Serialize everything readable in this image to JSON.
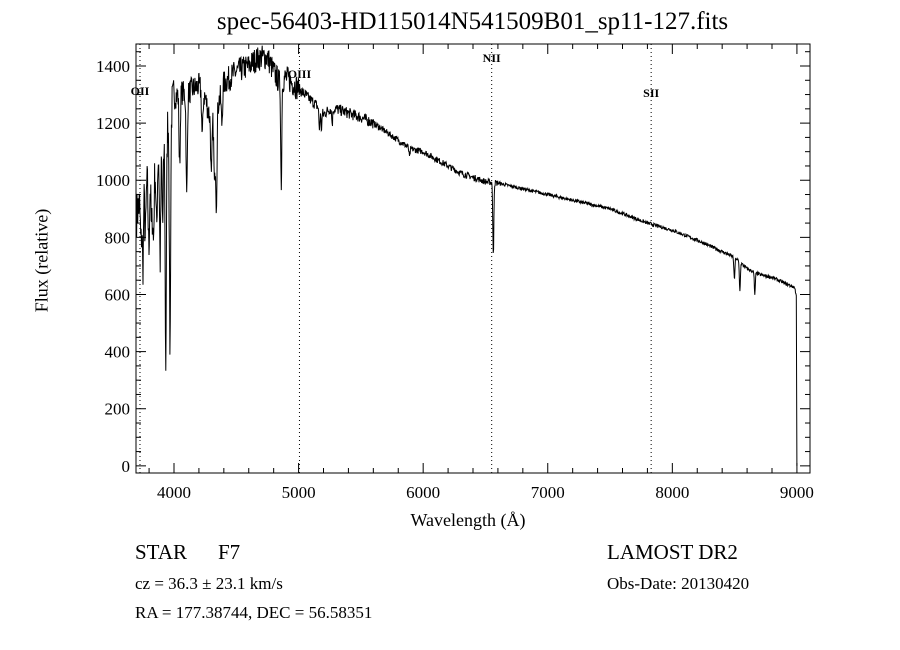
{
  "chart_data": {
    "type": "line",
    "title": "spec-56403-HD115014N541509B01_sp11-127.fits",
    "xlabel": "Wavelength (Å)",
    "ylabel": "Flux (relative)",
    "xlim": [
      3695,
      9105
    ],
    "ylim": [
      -25,
      1477
    ],
    "xticks": [
      4000,
      5000,
      6000,
      7000,
      8000,
      9000
    ],
    "yticks": [
      0,
      200,
      400,
      600,
      800,
      1000,
      1200,
      1400
    ],
    "grid": false,
    "series": [
      {
        "name": "spectrum",
        "continuum": [
          [
            3700,
            880
          ],
          [
            3760,
            980
          ],
          [
            3800,
            1000
          ],
          [
            3850,
            1050
          ],
          [
            3900,
            1120
          ],
          [
            3950,
            1200
          ],
          [
            4000,
            1290
          ],
          [
            4050,
            1310
          ],
          [
            4100,
            1300
          ],
          [
            4150,
            1320
          ],
          [
            4200,
            1330
          ],
          [
            4250,
            1290
          ],
          [
            4300,
            1200
          ],
          [
            4350,
            1260
          ],
          [
            4400,
            1340
          ],
          [
            4450,
            1360
          ],
          [
            4500,
            1380
          ],
          [
            4550,
            1390
          ],
          [
            4600,
            1400
          ],
          [
            4650,
            1420
          ],
          [
            4700,
            1430
          ],
          [
            4750,
            1430
          ],
          [
            4800,
            1380
          ],
          [
            4850,
            1340
          ],
          [
            4900,
            1360
          ],
          [
            4950,
            1340
          ],
          [
            5000,
            1320
          ],
          [
            5100,
            1280
          ],
          [
            5150,
            1260
          ],
          [
            5200,
            1230
          ],
          [
            5250,
            1250
          ],
          [
            5300,
            1250
          ],
          [
            5400,
            1235
          ],
          [
            5500,
            1220
          ],
          [
            5600,
            1200
          ],
          [
            5700,
            1170
          ],
          [
            5800,
            1140
          ],
          [
            5900,
            1110
          ],
          [
            6000,
            1100
          ],
          [
            6100,
            1075
          ],
          [
            6200,
            1050
          ],
          [
            6300,
            1025
          ],
          [
            6400,
            1010
          ],
          [
            6500,
            995
          ],
          [
            6600,
            990
          ],
          [
            6800,
            970
          ],
          [
            7000,
            950
          ],
          [
            7200,
            930
          ],
          [
            7500,
            900
          ],
          [
            7800,
            850
          ],
          [
            8000,
            825
          ],
          [
            8200,
            790
          ],
          [
            8400,
            750
          ],
          [
            8500,
            730
          ],
          [
            8600,
            690
          ],
          [
            8700,
            670
          ],
          [
            8800,
            660
          ],
          [
            8900,
            640
          ],
          [
            8980,
            625
          ],
          [
            8995,
            600
          ]
        ],
        "absorption_lines": [
          [
            3735,
            780
          ],
          [
            3750,
            700
          ],
          [
            3770,
            800
          ],
          [
            3798,
            760
          ],
          [
            3820,
            820
          ],
          [
            3835,
            790
          ],
          [
            3860,
            830
          ],
          [
            3889,
            720
          ],
          [
            3910,
            850
          ],
          [
            3934,
            360
          ],
          [
            3968,
            420
          ],
          [
            4045,
            1050
          ],
          [
            4102,
            940
          ],
          [
            4227,
            1150
          ],
          [
            4300,
            1000
          ],
          [
            4325,
            980
          ],
          [
            4340,
            920
          ],
          [
            4384,
            1200
          ],
          [
            4861,
            960
          ],
          [
            5167,
            1180
          ],
          [
            5183,
            1180
          ],
          [
            5270,
            1200
          ],
          [
            5890,
            1080
          ],
          [
            6563,
            730
          ],
          [
            8498,
            650
          ],
          [
            8542,
            610
          ],
          [
            8662,
            600
          ]
        ],
        "end_drop": [
          9000,
          0
        ]
      }
    ],
    "annotations": {
      "emission_markers": [
        {
          "label": "OII",
          "wavelength": 3727
        },
        {
          "label": "OIII",
          "wavelength": 5007
        },
        {
          "label": "NII",
          "wavelength": 6550
        },
        {
          "label": "SII",
          "wavelength": 7830
        }
      ]
    }
  },
  "info": {
    "class": "STAR",
    "subclass": "F7",
    "survey": "LAMOST DR2",
    "cz": "cz = 36.3 ± 23.1 km/s",
    "obs_date": "Obs-Date: 20130420",
    "coords": "RA = 177.38744, DEC =  56.58351"
  }
}
